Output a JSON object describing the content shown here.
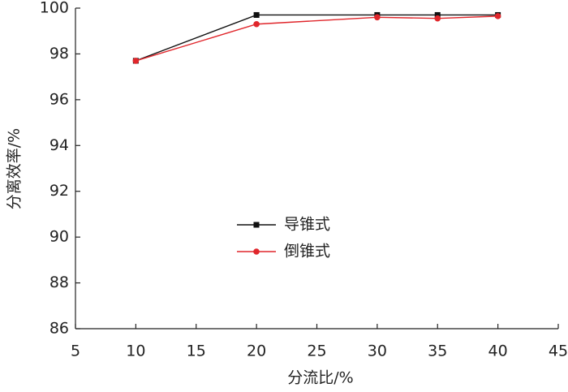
{
  "chart_data": {
    "type": "line",
    "x_label": "分流比/%",
    "y_label": "分离效率/%",
    "x": [
      10,
      20,
      30,
      35,
      40
    ],
    "series": [
      {
        "name": "导锥式",
        "color": "#111111",
        "marker": "square",
        "values": [
          97.7,
          99.7,
          99.7,
          99.7,
          99.7
        ]
      },
      {
        "name": "倒锥式",
        "color": "#e0262b",
        "marker": "circle",
        "values": [
          97.7,
          99.3,
          99.6,
          99.55,
          99.65
        ]
      }
    ],
    "xlim": [
      5,
      45
    ],
    "xticks": [
      5,
      10,
      15,
      20,
      25,
      30,
      35,
      40,
      45
    ],
    "ylim": [
      86,
      100
    ],
    "yticks": [
      86,
      88,
      90,
      92,
      94,
      96,
      98,
      100
    ],
    "grid": false,
    "legend": "center"
  }
}
